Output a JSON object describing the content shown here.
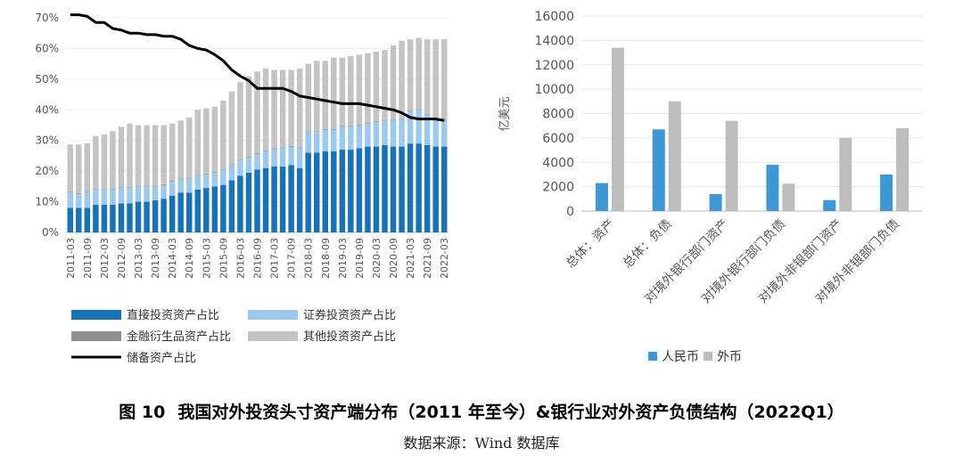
{
  "caption": {
    "label": "图 10",
    "text": "我国对外投资头寸资产端分布（2011 年至今）&银行业对外资产负债结构（2022Q1）"
  },
  "source": "数据来源：Wind 数据库",
  "chart_data": [
    {
      "type": "bar",
      "stacked": true,
      "ylim": [
        0,
        0.7
      ],
      "y_ticks": [
        "0%",
        "10%",
        "20%",
        "30%",
        "40%",
        "50%",
        "60%",
        "70%"
      ],
      "x_ticks": [
        "2011-03",
        "2011-09",
        "2012-03",
        "2012-09",
        "2013-03",
        "2013-09",
        "2014-03",
        "2014-09",
        "2015-03",
        "2015-09",
        "2016-03",
        "2016-09",
        "2017-03",
        "2017-09",
        "2018-03",
        "2018-09",
        "2019-03",
        "2019-09",
        "2020-03",
        "2020-09",
        "2021-03",
        "2021-09",
        "2022-03"
      ],
      "categories": [
        "2011-03",
        "2011-06",
        "2011-09",
        "2011-12",
        "2012-03",
        "2012-06",
        "2012-09",
        "2012-12",
        "2013-03",
        "2013-06",
        "2013-09",
        "2013-12",
        "2014-03",
        "2014-06",
        "2014-09",
        "2014-12",
        "2015-03",
        "2015-06",
        "2015-09",
        "2015-12",
        "2016-03",
        "2016-06",
        "2016-09",
        "2016-12",
        "2017-03",
        "2017-06",
        "2017-09",
        "2017-12",
        "2018-03",
        "2018-06",
        "2018-09",
        "2018-12",
        "2019-03",
        "2019-06",
        "2019-09",
        "2019-12",
        "2020-03",
        "2020-06",
        "2020-09",
        "2020-12",
        "2021-03",
        "2021-06",
        "2021-09",
        "2021-12",
        "2022-03"
      ],
      "series": [
        {
          "name": "直接投资资产占比",
          "color": "#1a72b6",
          "values": [
            0.08,
            0.08,
            0.08,
            0.09,
            0.09,
            0.09,
            0.095,
            0.095,
            0.1,
            0.1,
            0.105,
            0.11,
            0.12,
            0.13,
            0.13,
            0.14,
            0.145,
            0.15,
            0.155,
            0.17,
            0.185,
            0.195,
            0.205,
            0.21,
            0.215,
            0.215,
            0.22,
            0.21,
            0.26,
            0.26,
            0.265,
            0.265,
            0.27,
            0.27,
            0.275,
            0.28,
            0.28,
            0.285,
            0.28,
            0.28,
            0.29,
            0.29,
            0.285,
            0.28,
            0.28
          ]
        },
        {
          "name": "证券投资资产占比",
          "color": "#9dcaec",
          "values": [
            0.05,
            0.045,
            0.05,
            0.05,
            0.05,
            0.05,
            0.05,
            0.05,
            0.05,
            0.05,
            0.045,
            0.045,
            0.045,
            0.045,
            0.045,
            0.045,
            0.045,
            0.045,
            0.05,
            0.05,
            0.05,
            0.05,
            0.05,
            0.055,
            0.055,
            0.06,
            0.06,
            0.065,
            0.07,
            0.07,
            0.07,
            0.07,
            0.075,
            0.075,
            0.075,
            0.075,
            0.08,
            0.08,
            0.085,
            0.09,
            0.105,
            0.11,
            0.1,
            0.09,
            0.085
          ]
        },
        {
          "name": "金融衍生品资产占比",
          "color": "#8f8f8f",
          "values": [
            0.002,
            0.002,
            0.002,
            0.002,
            0.002,
            0.002,
            0.002,
            0.002,
            0.002,
            0.002,
            0.002,
            0.002,
            0.002,
            0.002,
            0.002,
            0.002,
            0.002,
            0.002,
            0.002,
            0.002,
            0.002,
            0.002,
            0.002,
            0.002,
            0.002,
            0.002,
            0.002,
            0.002,
            0.002,
            0.002,
            0.002,
            0.002,
            0.002,
            0.002,
            0.002,
            0.002,
            0.002,
            0.002,
            0.002,
            0.002,
            0.002,
            0.002,
            0.002,
            0.002,
            0.002
          ]
        },
        {
          "name": "其他投资资产占比",
          "color": "#c4c4c4",
          "values": [
            0.155,
            0.16,
            0.159,
            0.173,
            0.178,
            0.188,
            0.198,
            0.208,
            0.198,
            0.198,
            0.198,
            0.193,
            0.188,
            0.188,
            0.198,
            0.213,
            0.213,
            0.213,
            0.223,
            0.238,
            0.253,
            0.263,
            0.268,
            0.268,
            0.258,
            0.253,
            0.248,
            0.258,
            0.218,
            0.228,
            0.223,
            0.233,
            0.223,
            0.228,
            0.228,
            0.228,
            0.228,
            0.228,
            0.243,
            0.253,
            0.233,
            0.233,
            0.243,
            0.258,
            0.263
          ]
        },
        {
          "name": "储备资产占比",
          "color": "#000000",
          "type": "line",
          "values": [
            0.71,
            0.71,
            0.705,
            0.685,
            0.685,
            0.665,
            0.66,
            0.65,
            0.65,
            0.645,
            0.645,
            0.64,
            0.64,
            0.63,
            0.61,
            0.6,
            0.595,
            0.58,
            0.56,
            0.53,
            0.51,
            0.495,
            0.47,
            0.47,
            0.47,
            0.47,
            0.46,
            0.445,
            0.44,
            0.435,
            0.43,
            0.425,
            0.42,
            0.42,
            0.42,
            0.415,
            0.41,
            0.405,
            0.4,
            0.39,
            0.375,
            0.37,
            0.37,
            0.37,
            0.365
          ]
        }
      ]
    },
    {
      "type": "bar",
      "ylabel": "亿美元",
      "ylim": [
        0,
        16000
      ],
      "y_ticks": [
        "0",
        "2000",
        "4000",
        "6000",
        "8000",
        "10000",
        "12000",
        "14000",
        "16000"
      ],
      "categories": [
        "总体：资产",
        "总体：负债",
        "对境外银行部门资产",
        "对境外银行部门负债",
        "对境外非银部门资产",
        "对境外非银部门负债"
      ],
      "series": [
        {
          "name": "人民币",
          "color": "#3f97d6",
          "values": [
            2300,
            6700,
            1400,
            3800,
            900,
            3000
          ]
        },
        {
          "name": "外币",
          "color": "#bdbdbd",
          "values": [
            13400,
            9000,
            7400,
            2250,
            6000,
            6800
          ]
        }
      ]
    }
  ]
}
